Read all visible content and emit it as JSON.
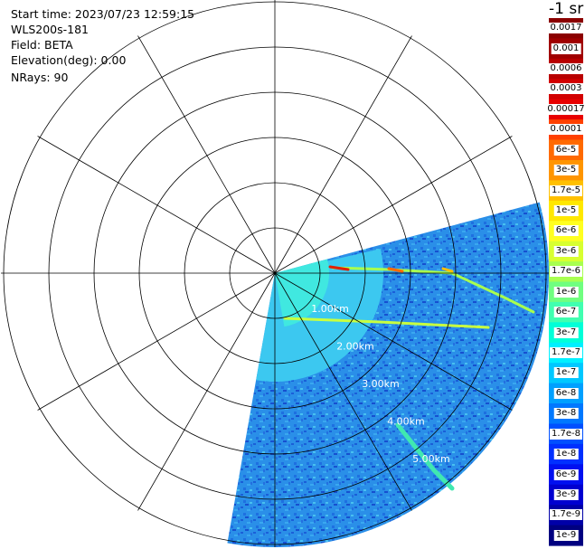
{
  "header": {
    "start_time": "Start time: 2023/07/23 12:59:15",
    "instrument": "WLS200s-181",
    "field": "Field: BETA",
    "elevation": "Elevation(deg): 0.00",
    "nrays": "NRays: 90"
  },
  "colorbar": {
    "units": "-1 sr",
    "labels": [
      "0.0017",
      "0.001",
      "0.0006",
      "0.0003",
      "0.00017",
      "0.0001",
      "6e-5",
      "3e-5",
      "1.7e-5",
      "1e-5",
      "6e-6",
      "3e-6",
      "1.7e-6",
      "1e-6",
      "6e-7",
      "3e-7",
      "1.7e-7",
      "1e-7",
      "6e-8",
      "3e-8",
      "1.7e-8",
      "1e-8",
      "6e-9",
      "3e-9",
      "1.7e-9",
      "1e-9"
    ],
    "colors": [
      "#8b0000",
      "#a00000",
      "#b80000",
      "#d20000",
      "#e80000",
      "#ff4000",
      "#ff6a00",
      "#ff9500",
      "#ffc000",
      "#ffe800",
      "#ffff20",
      "#d8ff30",
      "#a8ff50",
      "#70ff80",
      "#40ffb0",
      "#00ffd8",
      "#00f0ff",
      "#00c8ff",
      "#00a0ff",
      "#0078ff",
      "#0050ff",
      "#0030ff",
      "#0010f0",
      "#0000d0",
      "#0000a8",
      "#000080"
    ]
  },
  "polar": {
    "range_rings": [
      "1.00km",
      "2.00km",
      "3.00km",
      "4.00km",
      "5.00km"
    ],
    "sector_start_deg": 105,
    "sector_end_deg": 190
  }
}
